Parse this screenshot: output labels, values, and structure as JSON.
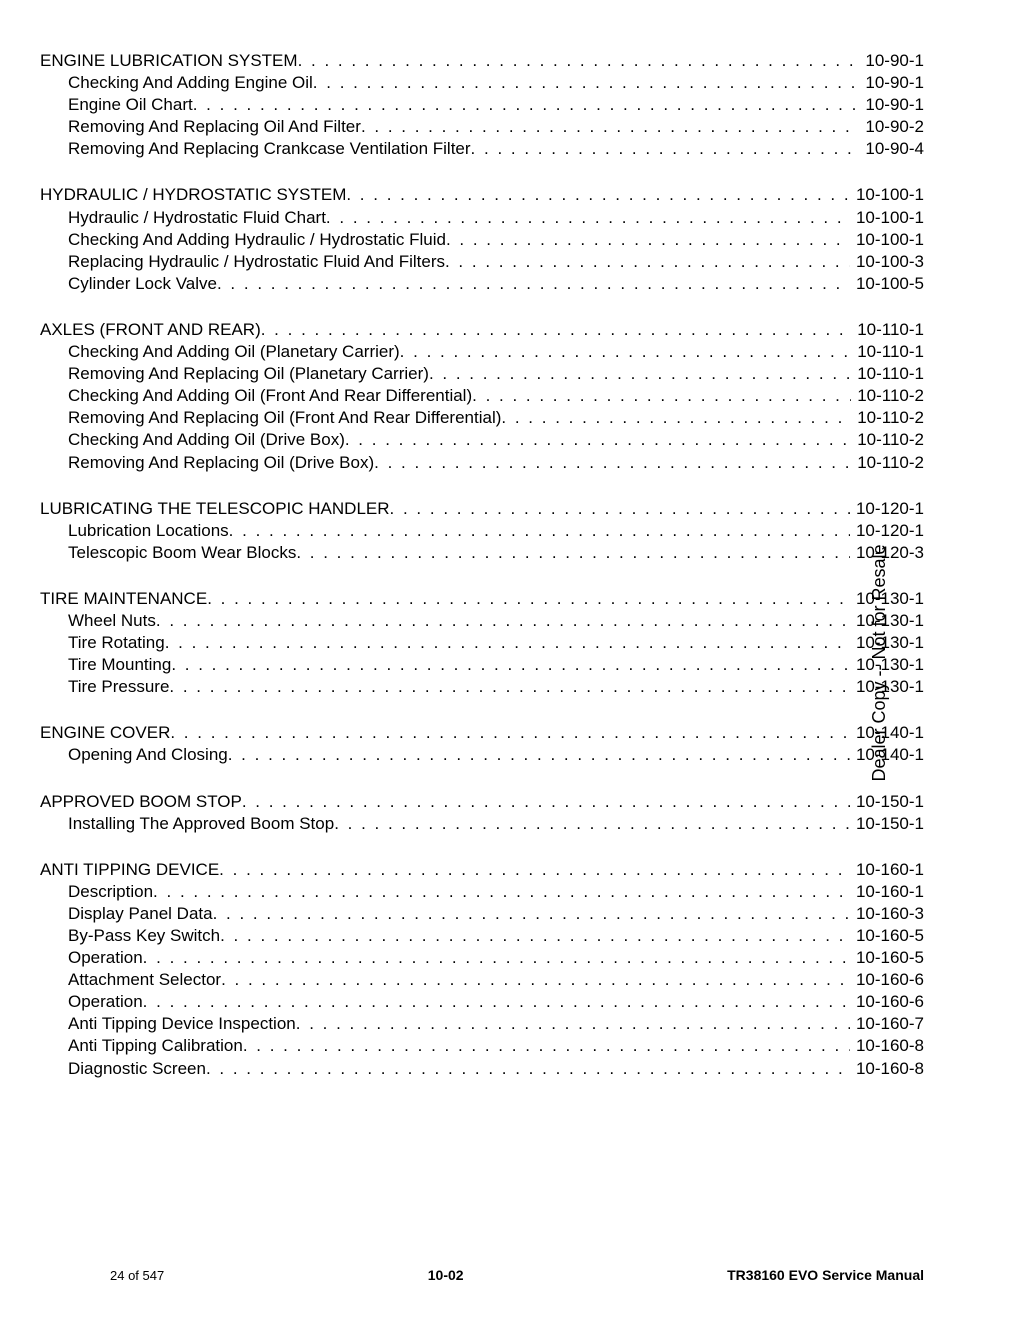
{
  "sidetext": "Dealer Copy -- Not for Resale",
  "footer": {
    "left": "24 of 547",
    "center": "10-02",
    "right": "TR38160 EVO Service Manual"
  },
  "sections": [
    {
      "title": "ENGINE LUBRICATION SYSTEM",
      "page": "10-90-1",
      "rows": [
        {
          "label": "Checking And Adding Engine Oil",
          "page": "10-90-1"
        },
        {
          "label": "Engine Oil Chart",
          "page": "10-90-1"
        },
        {
          "label": "Removing And Replacing Oil And Filter",
          "page": "10-90-2"
        },
        {
          "label": "Removing And Replacing Crankcase Ventilation Filter",
          "page": "10-90-4"
        }
      ]
    },
    {
      "title": "HYDRAULIC / HYDROSTATIC SYSTEM",
      "page": "10-100-1",
      "rows": [
        {
          "label": "Hydraulic / Hydrostatic Fluid Chart",
          "page": "10-100-1"
        },
        {
          "label": "Checking And Adding Hydraulic / Hydrostatic Fluid",
          "page": "10-100-1"
        },
        {
          "label": "Replacing Hydraulic / Hydrostatic Fluid And Filters",
          "page": "10-100-3"
        },
        {
          "label": "Cylinder Lock Valve",
          "page": "10-100-5"
        }
      ]
    },
    {
      "title": "AXLES (FRONT AND REAR)",
      "page": "10-110-1",
      "rows": [
        {
          "label": "Checking And Adding Oil (Planetary Carrier)",
          "page": "10-110-1"
        },
        {
          "label": "Removing And Replacing Oil (Planetary Carrier)",
          "page": "10-110-1"
        },
        {
          "label": "Checking And Adding Oil (Front And Rear Differential)",
          "page": "10-110-2"
        },
        {
          "label": "Removing And Replacing Oil (Front And Rear Differential)",
          "page": "10-110-2"
        },
        {
          "label": "Checking And Adding Oil (Drive Box)",
          "page": "10-110-2"
        },
        {
          "label": "Removing And Replacing Oil (Drive Box)",
          "page": "10-110-2"
        }
      ]
    },
    {
      "title": "LUBRICATING THE TELESCOPIC HANDLER",
      "page": "10-120-1",
      "rows": [
        {
          "label": "Lubrication Locations",
          "page": "10-120-1"
        },
        {
          "label": "Telescopic Boom Wear Blocks",
          "page": "10-120-3"
        }
      ]
    },
    {
      "title": "TIRE MAINTENANCE",
      "page": "10-130-1",
      "rows": [
        {
          "label": "Wheel Nuts",
          "page": "10-130-1"
        },
        {
          "label": "Tire Rotating",
          "page": "10-130-1"
        },
        {
          "label": "Tire Mounting",
          "page": "10-130-1"
        },
        {
          "label": "Tire Pressure",
          "page": "10-130-1"
        }
      ]
    },
    {
      "title": "ENGINE COVER",
      "page": "10-140-1",
      "rows": [
        {
          "label": "Opening And Closing",
          "page": "10-140-1"
        }
      ]
    },
    {
      "title": "APPROVED BOOM STOP",
      "page": "10-150-1",
      "rows": [
        {
          "label": "Installing The Approved Boom Stop",
          "page": "10-150-1"
        }
      ]
    },
    {
      "title": "ANTI TIPPING DEVICE",
      "page": "10-160-1",
      "rows": [
        {
          "label": "Description",
          "page": "10-160-1"
        },
        {
          "label": "Display Panel Data",
          "page": "10-160-3"
        },
        {
          "label": "By-Pass Key Switch",
          "page": "10-160-5"
        },
        {
          "label": "Operation",
          "page": "10-160-5"
        },
        {
          "label": "Attachment Selector",
          "page": "10-160-6"
        },
        {
          "label": "Operation",
          "page": "10-160-6"
        },
        {
          "label": "Anti Tipping Device Inspection",
          "page": "10-160-7"
        },
        {
          "label": "Anti Tipping Calibration",
          "page": "10-160-8"
        },
        {
          "label": "Diagnostic Screen",
          "page": "10-160-8"
        }
      ]
    }
  ]
}
